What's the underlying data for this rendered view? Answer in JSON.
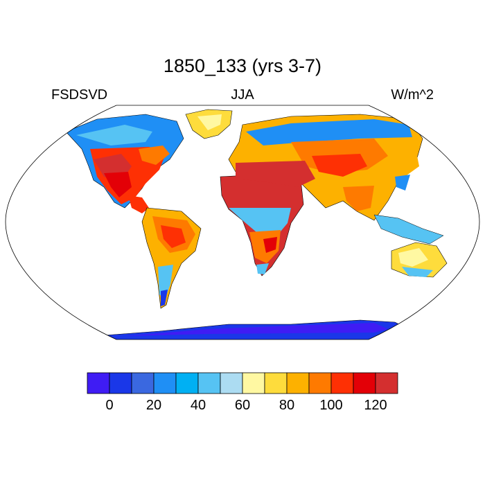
{
  "title": "1850_133 (yrs 3-7)",
  "left_label": "FSDSVD",
  "center_label": "JJA",
  "right_label": "W/m^2",
  "colorbar": {
    "colors": [
      "#3f1cf4",
      "#1a37e8",
      "#3a68e0",
      "#1f8ff5",
      "#00b0f3",
      "#56c3f3",
      "#acdcf2",
      "#fff8a2",
      "#fedc3c",
      "#fdb100",
      "#fe7a00",
      "#fe3004",
      "#e30007",
      "#d42f2f"
    ],
    "tick_labels": [
      "0",
      "20",
      "40",
      "60",
      "80",
      "100",
      "120"
    ]
  }
}
